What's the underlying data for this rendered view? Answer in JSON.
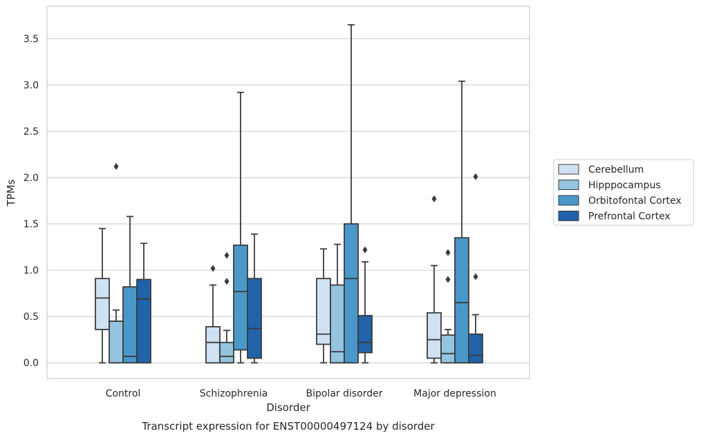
{
  "chart_data": {
    "type": "box",
    "title": "Transcript expression for ENST00000497124 by disorder",
    "xlabel": "Disorder",
    "ylabel": "TPMs",
    "ylim": [
      -0.17,
      3.85
    ],
    "yticks": [
      "0.0",
      "0.5",
      "1.0",
      "1.5",
      "2.0",
      "2.5",
      "3.0",
      "3.5"
    ],
    "categories": [
      "Control",
      "Schizophrenia",
      "Bipolar disorder",
      "Major depression"
    ],
    "grid": true,
    "legend_position": "right",
    "series": [
      {
        "name": "Cerebellum",
        "color": "#d0e1f2",
        "boxes": [
          {
            "whisker_low": 0.0,
            "q1": 0.36,
            "median": 0.7,
            "q3": 0.91,
            "whisker_high": 1.45,
            "outliers": []
          },
          {
            "whisker_low": 0.0,
            "q1": 0.0,
            "median": 0.22,
            "q3": 0.39,
            "whisker_high": 0.84,
            "outliers": [
              1.02
            ]
          },
          {
            "whisker_low": 0.0,
            "q1": 0.2,
            "median": 0.31,
            "q3": 0.91,
            "whisker_high": 1.23,
            "outliers": []
          },
          {
            "whisker_low": 0.0,
            "q1": 0.05,
            "median": 0.25,
            "q3": 0.54,
            "whisker_high": 1.05,
            "outliers": [
              1.77
            ]
          }
        ]
      },
      {
        "name": "Hipppocampus",
        "color": "#94c4df",
        "boxes": [
          {
            "whisker_low": 0.0,
            "q1": 0.0,
            "median": 0.45,
            "q3": 0.45,
            "whisker_high": 0.57,
            "outliers": [
              2.12
            ]
          },
          {
            "whisker_low": 0.0,
            "q1": 0.0,
            "median": 0.07,
            "q3": 0.22,
            "whisker_high": 0.35,
            "outliers": [
              0.88,
              1.16
            ]
          },
          {
            "whisker_low": 0.0,
            "q1": 0.0,
            "median": 0.12,
            "q3": 0.84,
            "whisker_high": 1.28,
            "outliers": []
          },
          {
            "whisker_low": 0.0,
            "q1": 0.0,
            "median": 0.1,
            "q3": 0.3,
            "whisker_high": 0.36,
            "outliers": [
              0.9,
              1.19
            ]
          }
        ]
      },
      {
        "name": "Orbitofontal Cortex",
        "color": "#4a98c9",
        "boxes": [
          {
            "whisker_low": 0.0,
            "q1": 0.0,
            "median": 0.07,
            "q3": 0.82,
            "whisker_high": 1.58,
            "outliers": []
          },
          {
            "whisker_low": 0.0,
            "q1": 0.14,
            "median": 0.77,
            "q3": 1.27,
            "whisker_high": 2.92,
            "outliers": []
          },
          {
            "whisker_low": 0.0,
            "q1": 0.0,
            "median": 0.91,
            "q3": 1.5,
            "whisker_high": 3.65,
            "outliers": []
          },
          {
            "whisker_low": 0.0,
            "q1": 0.0,
            "median": 0.65,
            "q3": 1.35,
            "whisker_high": 3.04,
            "outliers": []
          }
        ]
      },
      {
        "name": "Prefrontal Cortex",
        "color": "#2163aa",
        "boxes": [
          {
            "whisker_low": 0.0,
            "q1": 0.0,
            "median": 0.69,
            "q3": 0.9,
            "whisker_high": 1.29,
            "outliers": []
          },
          {
            "whisker_low": 0.0,
            "q1": 0.05,
            "median": 0.37,
            "q3": 0.91,
            "whisker_high": 1.39,
            "outliers": []
          },
          {
            "whisker_low": 0.0,
            "q1": 0.11,
            "median": 0.22,
            "q3": 0.51,
            "whisker_high": 1.09,
            "outliers": [
              1.22
            ]
          },
          {
            "whisker_low": 0.0,
            "q1": 0.0,
            "median": 0.08,
            "q3": 0.31,
            "whisker_high": 0.52,
            "outliers": [
              0.93,
              2.01
            ]
          }
        ]
      }
    ]
  }
}
